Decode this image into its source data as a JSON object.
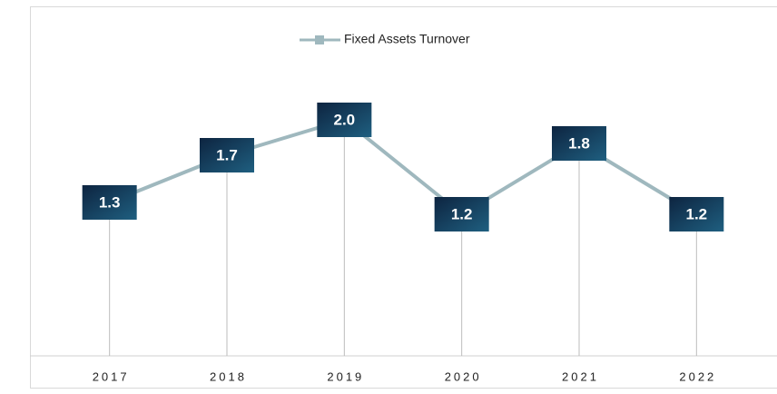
{
  "chart_data": {
    "type": "line",
    "categories": [
      "2017",
      "2018",
      "2019",
      "2020",
      "2021",
      "2022"
    ],
    "series": [
      {
        "name": "Fixed Assets Turnover",
        "color": "#9fb8be",
        "values": [
          1.3,
          1.7,
          2.0,
          1.2,
          1.8,
          1.2
        ],
        "value_labels": [
          "1.3",
          "1.7",
          "2.0",
          "1.2",
          "1.8",
          "1.2"
        ]
      }
    ],
    "label_color": "#143d5e",
    "ylim": [
      0,
      2.5
    ],
    "legend": "top"
  }
}
